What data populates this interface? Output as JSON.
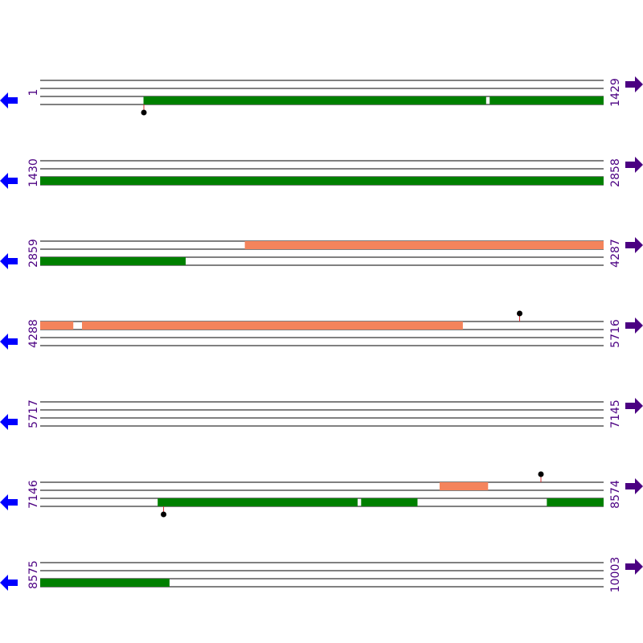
{
  "colors": {
    "line": "#000000",
    "forward_feature": "#f4845c",
    "reverse_feature": "#008000",
    "left_arrow": "#0000ff",
    "right_arrow": "#4b0082",
    "label": "#4b0082",
    "marker": "#000000",
    "marker_stem": "#d13030"
  },
  "sequence": {
    "rows": [
      {
        "start": "1",
        "end": "1429",
        "s": 1,
        "e": 1429,
        "features": [
          {
            "track": 2,
            "from": 263,
            "to": 1131,
            "color": "reverse_feature"
          },
          {
            "track": 2,
            "from": 1141,
            "to": 1429,
            "color": "reverse_feature"
          }
        ],
        "markers": [
          {
            "track": 3,
            "pos": 264,
            "dir": "down"
          }
        ]
      },
      {
        "start": "1430",
        "end": "2858",
        "s": 1430,
        "e": 2858,
        "features": [
          {
            "track": 2,
            "from": 1430,
            "to": 2858,
            "color": "reverse_feature"
          }
        ],
        "markers": []
      },
      {
        "start": "2859",
        "end": "4287",
        "s": 2859,
        "e": 4287,
        "features": [
          {
            "track": 0,
            "from": 3378,
            "to": 4287,
            "color": "forward_feature"
          },
          {
            "track": 2,
            "from": 2859,
            "to": 3227,
            "color": "reverse_feature"
          }
        ],
        "markers": []
      },
      {
        "start": "4288",
        "end": "5716",
        "s": 4288,
        "e": 5716,
        "features": [
          {
            "track": 0,
            "from": 4288,
            "to": 4371,
            "color": "forward_feature"
          },
          {
            "track": 0,
            "from": 4394,
            "to": 5359,
            "color": "forward_feature"
          }
        ],
        "markers": [
          {
            "track": 0,
            "pos": 5504,
            "dir": "up"
          }
        ]
      },
      {
        "start": "5717",
        "end": "7145",
        "s": 5717,
        "e": 7145,
        "features": [],
        "markers": []
      },
      {
        "start": "7146",
        "end": "8574",
        "s": 7146,
        "e": 8574,
        "features": [
          {
            "track": 0,
            "from": 8159,
            "to": 8281,
            "color": "forward_feature"
          },
          {
            "track": 2,
            "from": 7444,
            "to": 7950,
            "color": "reverse_feature"
          },
          {
            "track": 2,
            "from": 7960,
            "to": 8102,
            "color": "reverse_feature"
          },
          {
            "track": 2,
            "from": 8431,
            "to": 8574,
            "color": "reverse_feature"
          }
        ],
        "markers": [
          {
            "track": 0,
            "pos": 8416,
            "dir": "up"
          },
          {
            "track": 3,
            "pos": 7459,
            "dir": "down"
          }
        ]
      },
      {
        "start": "8575",
        "end": "10003",
        "s": 8575,
        "e": 10003,
        "features": [
          {
            "track": 2,
            "from": 8575,
            "to": 8902,
            "color": "reverse_feature"
          }
        ],
        "markers": []
      }
    ]
  }
}
